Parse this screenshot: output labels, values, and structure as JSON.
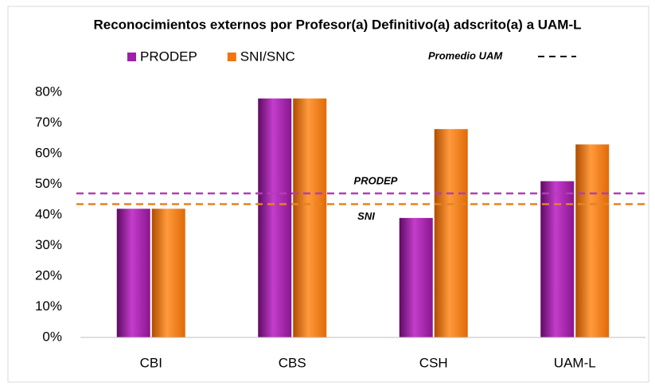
{
  "chart_data": {
    "type": "bar",
    "title": "Reconocimientos externos por Profesor(a) Definitivo(a) adscrito(a) a UAM-L",
    "categories": [
      "CBI",
      "CBS",
      "CSH",
      "UAM-L"
    ],
    "series": [
      {
        "name": "PRODEP",
        "color": "#a11fa8",
        "values": [
          42,
          78,
          39,
          51
        ]
      },
      {
        "name": "SNI/SNC",
        "color": "#f07412",
        "values": [
          42,
          78,
          68,
          63
        ]
      }
    ],
    "ylim": [
      0,
      80
    ],
    "yticks": [
      {
        "value": 0,
        "label": "0%"
      },
      {
        "value": 10,
        "label": "10%"
      },
      {
        "value": 20,
        "label": "20%"
      },
      {
        "value": 30,
        "label": "30%"
      },
      {
        "value": 40,
        "label": "40%"
      },
      {
        "value": 50,
        "label": "50%"
      },
      {
        "value": 60,
        "label": "60%"
      },
      {
        "value": 70,
        "label": "70%"
      },
      {
        "value": 80,
        "label": "80%"
      }
    ],
    "reference_legend": "Promedio UAM",
    "reference_lines": [
      {
        "label": "PRODEP",
        "value": 47,
        "color": "#b23db8"
      },
      {
        "label": "SNI",
        "value": 43.5,
        "color": "#e8821e"
      }
    ],
    "grid": false
  }
}
